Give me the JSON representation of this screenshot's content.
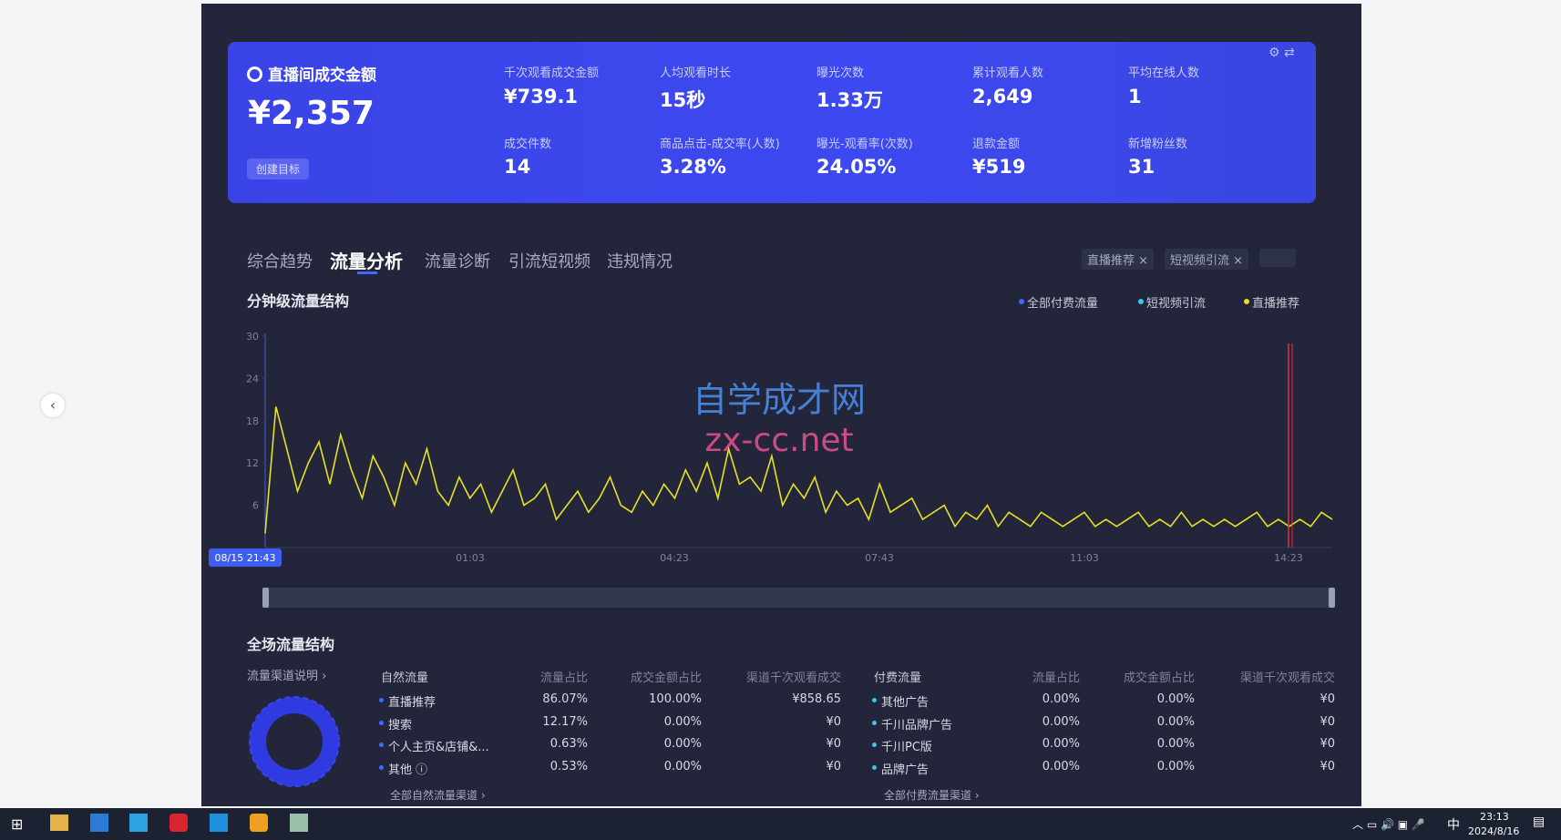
{
  "header": {
    "title": "直播间成交金额",
    "value": "¥2,357",
    "button": "创建目标"
  },
  "metrics": [
    {
      "label": "千次观看成交金额",
      "value": "¥739.1"
    },
    {
      "label": "人均观看时长",
      "value": "15秒"
    },
    {
      "label": "曝光次数",
      "value": "1.33万"
    },
    {
      "label": "累计观看人数",
      "value": "2,649"
    },
    {
      "label": "平均在线人数",
      "value": "1"
    },
    {
      "label": "成交件数",
      "value": "14"
    },
    {
      "label": "商品点击-成交率(人数)",
      "value": "3.28%"
    },
    {
      "label": "曝光-观看率(次数)",
      "value": "24.05%"
    },
    {
      "label": "退款金额",
      "value": "¥519"
    },
    {
      "label": "新增粉丝数",
      "value": "31"
    }
  ],
  "tabs": [
    "综合趋势",
    "流量分析",
    "流量诊断",
    "引流短视频",
    "违规情况"
  ],
  "active_tab": 1,
  "filters": [
    "直播推荐 ×",
    "短视频引流 ×"
  ],
  "chart": {
    "title": "分钟级流量结构",
    "legend": [
      "全部付费流量",
      "短视频引流",
      "直播推荐"
    ],
    "legend_colors": [
      "#3e6bff",
      "#38c6f4",
      "#e8e020"
    ],
    "ylim": [
      0,
      30
    ],
    "yticks": [
      6,
      12,
      18,
      24,
      30
    ],
    "xlabels": [
      "08/15 21:43",
      "01:03",
      "04:23",
      "07:43",
      "11:03",
      "14:23"
    ],
    "color": "#e8e020",
    "values": [
      2,
      20,
      14,
      8,
      12,
      15,
      9,
      16,
      11,
      7,
      13,
      10,
      6,
      12,
      9,
      14,
      8,
      6,
      10,
      7,
      9,
      5,
      8,
      11,
      6,
      7,
      9,
      4,
      6,
      8,
      5,
      7,
      10,
      6,
      5,
      8,
      6,
      9,
      7,
      11,
      8,
      12,
      7,
      14,
      9,
      10,
      8,
      13,
      6,
      9,
      7,
      10,
      5,
      8,
      6,
      7,
      4,
      9,
      5,
      6,
      7,
      4,
      5,
      6,
      3,
      5,
      4,
      6,
      3,
      5,
      4,
      3,
      5,
      4,
      3,
      4,
      5,
      3,
      4,
      3,
      4,
      5,
      3,
      4,
      3,
      5,
      3,
      4,
      3,
      4,
      3,
      4,
      5,
      3,
      4,
      3,
      4,
      3,
      5,
      4
    ]
  },
  "watermark": [
    "自学成才网",
    "zx-cc.net"
  ],
  "structure": {
    "title": "全场流量结构",
    "link": "流量渠道说明 ›",
    "natural": {
      "headers": [
        "自然流量",
        "流量占比",
        "成交金额占比",
        "渠道千次观看成交"
      ],
      "rows": [
        [
          "直播推荐",
          "86.07%",
          "100.00%",
          "¥858.65"
        ],
        [
          "搜索",
          "12.17%",
          "0.00%",
          "¥0"
        ],
        [
          "个人主页&店铺&...",
          "0.63%",
          "0.00%",
          "¥0"
        ],
        [
          "其他 ⓘ",
          "0.53%",
          "0.00%",
          "¥0"
        ]
      ],
      "footer": "全部自然流量渠道 ›"
    },
    "paid": {
      "headers": [
        "付费流量",
        "流量占比",
        "成交金额占比",
        "渠道千次观看成交"
      ],
      "rows": [
        [
          "其他广告",
          "0.00%",
          "0.00%",
          "¥0"
        ],
        [
          "千川品牌广告",
          "0.00%",
          "0.00%",
          "¥0"
        ],
        [
          "千川PC版",
          "0.00%",
          "0.00%",
          "¥0"
        ],
        [
          "品牌广告",
          "0.00%",
          "0.00%",
          "¥0"
        ]
      ],
      "footer": "全部付费流量渠道 ›"
    }
  },
  "taskbar": {
    "ime": "中",
    "time": "23:13",
    "date": "2024/8/16"
  }
}
